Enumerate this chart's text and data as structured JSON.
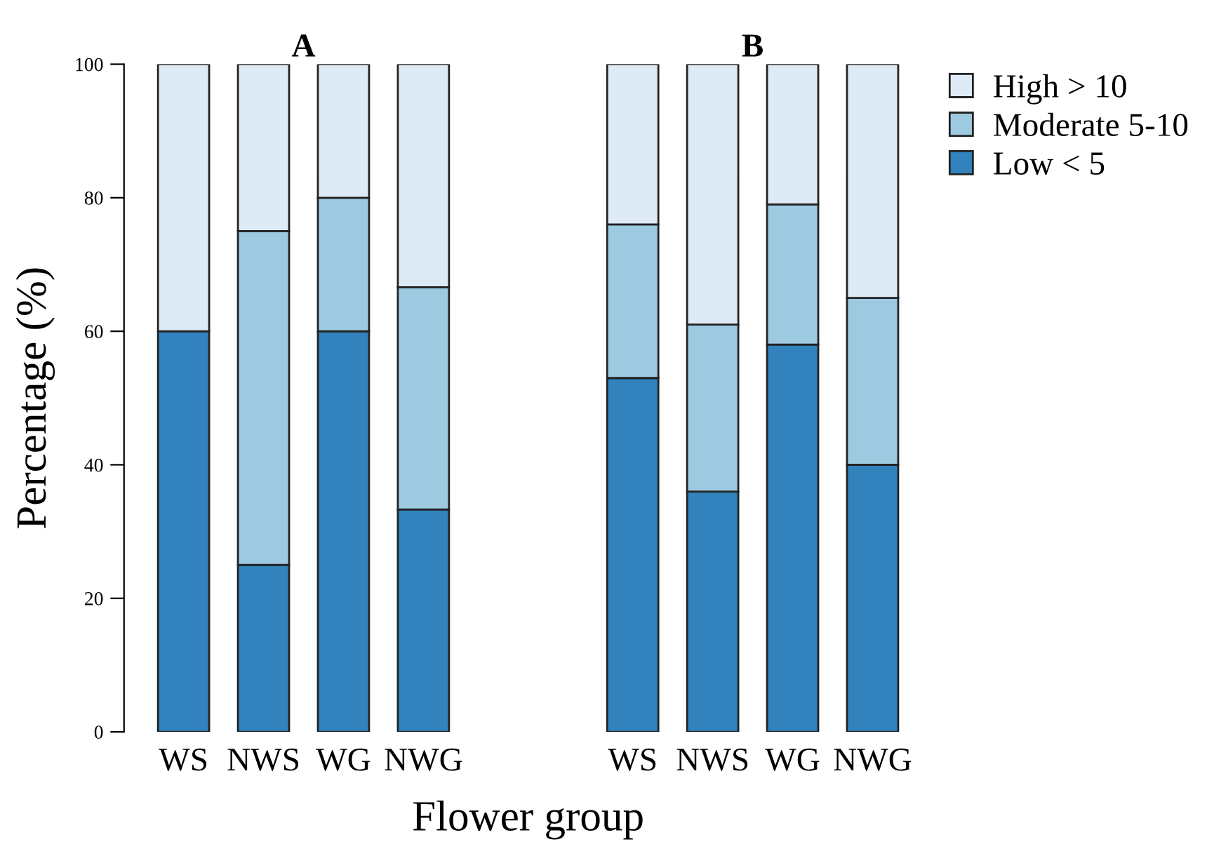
{
  "chart_data": [
    {
      "type": "bar",
      "stacked": true,
      "title": "A",
      "xlabel": "Flower group",
      "ylabel": "Percentage (%)",
      "categories": [
        "WS",
        "NWS",
        "WG",
        "NWG"
      ],
      "ylim": [
        0,
        100
      ],
      "yticks": [
        0,
        20,
        40,
        60,
        80,
        100
      ],
      "grid": false,
      "legend": false,
      "series": [
        {
          "color": "#3182bd",
          "values": [
            60,
            25,
            60,
            33.3
          ]
        },
        {
          "color": "#9ecae1",
          "values": [
            null,
            50,
            20,
            33.3
          ]
        },
        {
          "color": "#deebf7",
          "values": [
            40,
            25,
            20,
            33.4
          ]
        }
      ]
    },
    {
      "type": "bar",
      "stacked": true,
      "title": "B",
      "categories": [
        "WS",
        "NWS",
        "WG",
        "NWG"
      ],
      "ylim": [
        0,
        100
      ],
      "tick_labels": "x",
      "grid": false,
      "legend": "top right",
      "series": [
        {
          "name": "Low < 5",
          "color": "#3182bd",
          "values": [
            53,
            36,
            58,
            40
          ]
        },
        {
          "name": "Moderate 5-10",
          "color": "#9ecae1",
          "values": [
            23,
            25,
            21,
            25
          ]
        },
        {
          "name": "High > 10",
          "color": "#deebf7",
          "values": [
            24,
            39,
            21,
            35
          ]
        }
      ]
    }
  ]
}
